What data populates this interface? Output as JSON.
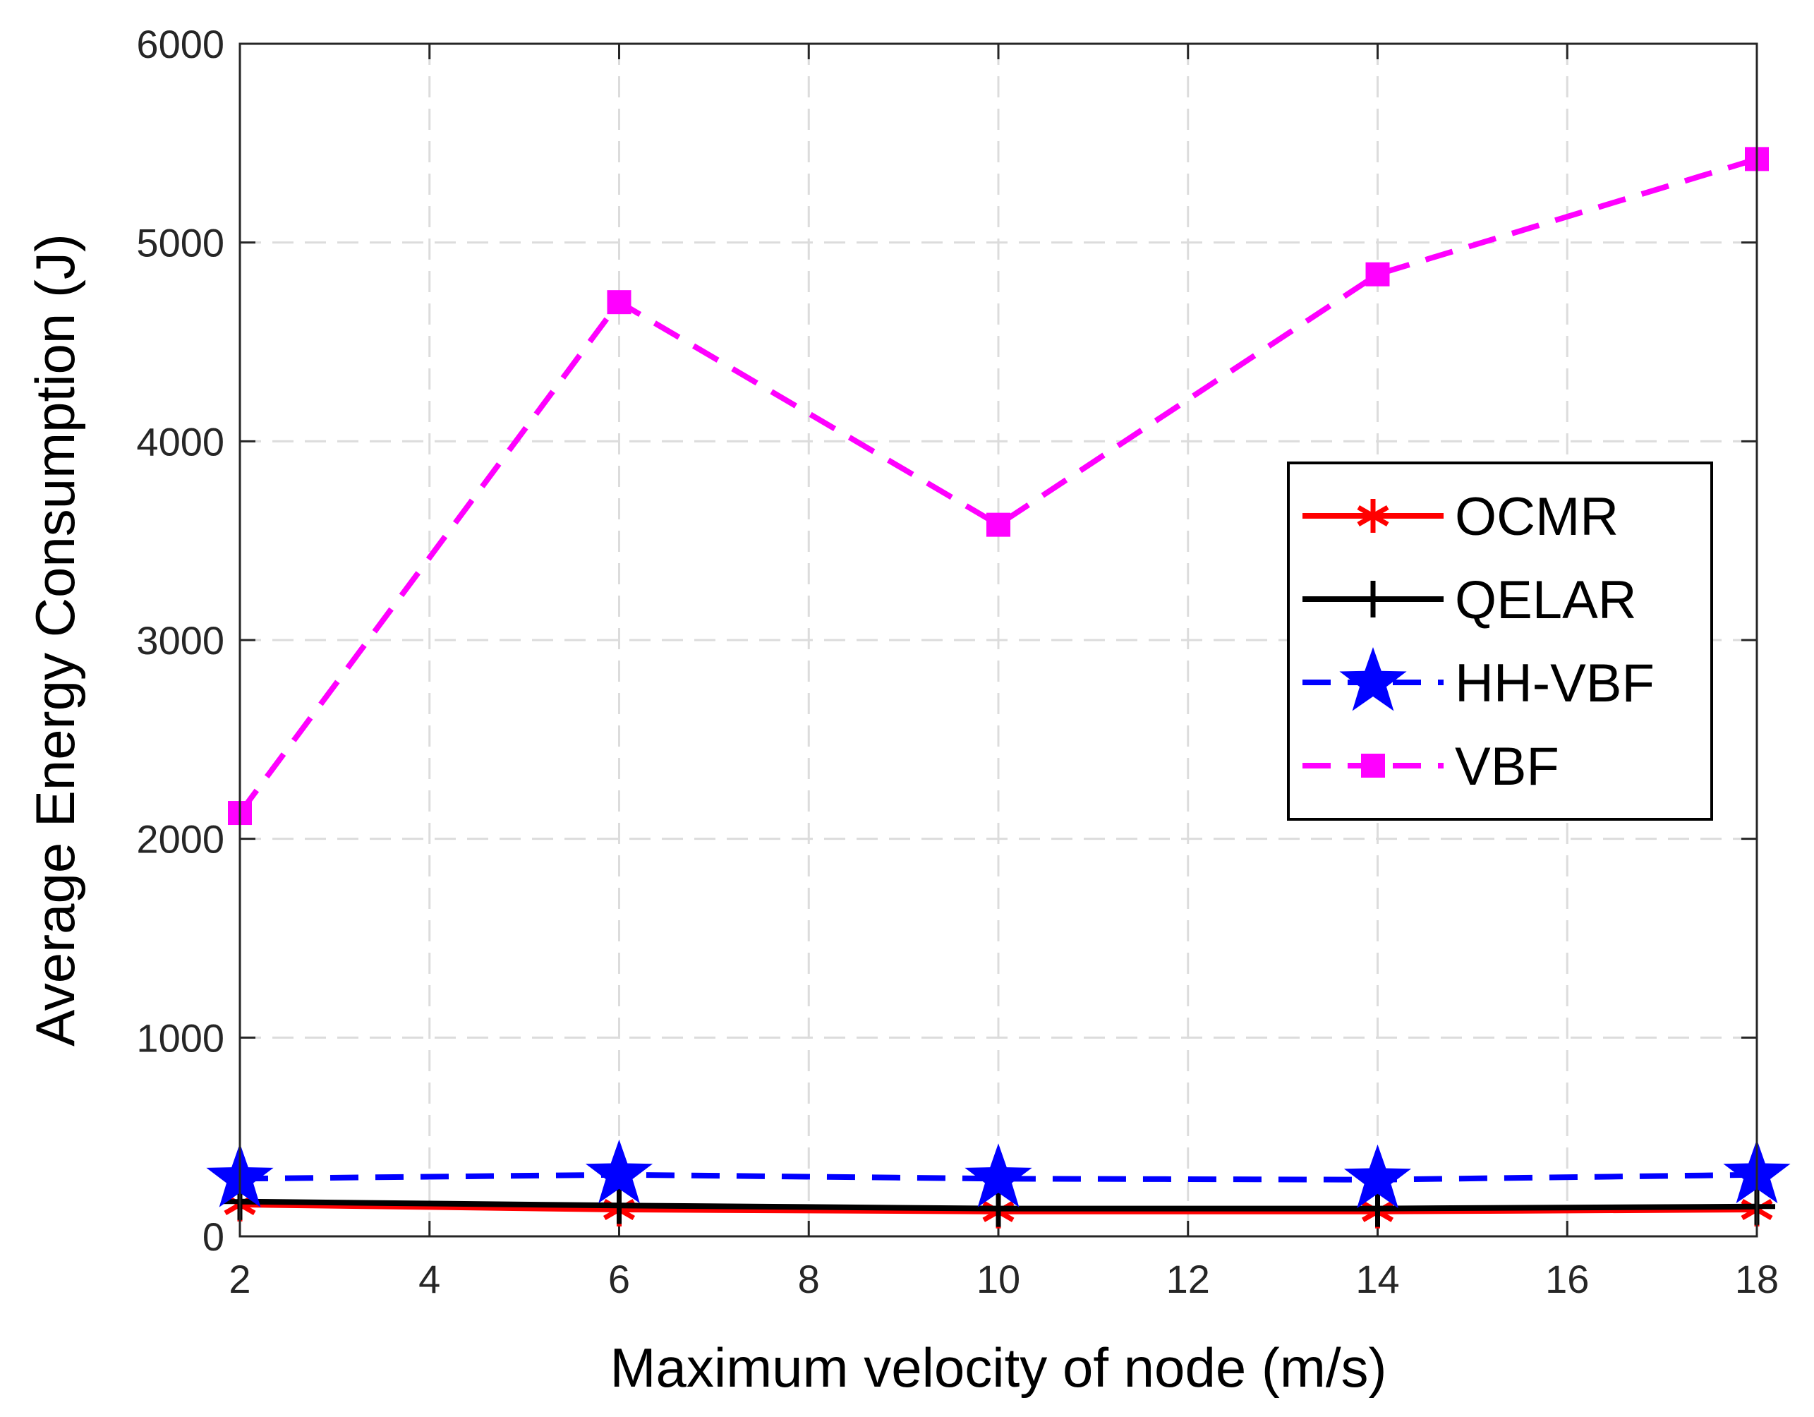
{
  "chart_data": {
    "type": "line",
    "title": "",
    "xlabel": "Maximum velocity of node (m/s)",
    "ylabel": "Average Energy Consumption (J)",
    "xlim": [
      2,
      18
    ],
    "ylim": [
      0,
      6000
    ],
    "xticks": [
      2,
      4,
      6,
      8,
      10,
      12,
      14,
      16,
      18
    ],
    "yticks": [
      0,
      1000,
      2000,
      3000,
      4000,
      5000,
      6000
    ],
    "grid": true,
    "legend_position": "right",
    "x": [
      2,
      6,
      10,
      14,
      18
    ],
    "series": [
      {
        "name": "OCMR",
        "values": [
          160,
          135,
          125,
          125,
          135
        ],
        "color": "#ff0000",
        "line": "solid",
        "marker": "asterisk"
      },
      {
        "name": "QELAR",
        "values": [
          175,
          155,
          140,
          140,
          150
        ],
        "color": "#000000",
        "line": "solid",
        "marker": "plus"
      },
      {
        "name": "HH-VBF",
        "values": [
          290,
          310,
          290,
          285,
          310
        ],
        "color": "#0000ff",
        "line": "dashed",
        "marker": "star"
      },
      {
        "name": "VBF",
        "values": [
          2130,
          4700,
          3580,
          4840,
          5420
        ],
        "color": "#ff00ff",
        "line": "dashed",
        "marker": "square"
      }
    ]
  }
}
